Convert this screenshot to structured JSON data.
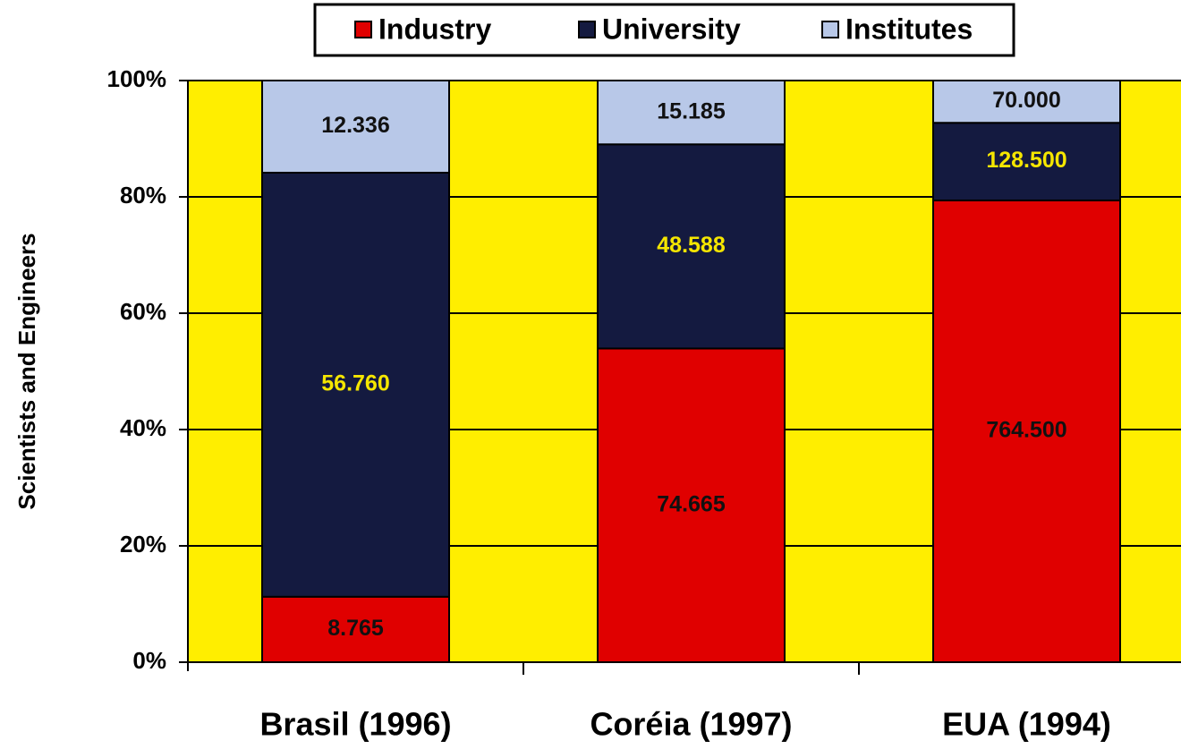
{
  "chart_data": {
    "type": "stacked_bar_percent",
    "y_label": "Scientists and Engineers",
    "categories": [
      "Brasil (1996)",
      "Coréia (1997)",
      "EUA (1994)"
    ],
    "series": [
      {
        "name": "Industry",
        "color": "#e00000",
        "label_color": "#111111",
        "values": [
          8765,
          74665,
          764500
        ],
        "value_labels": [
          "8.765",
          "74.665",
          "764.500"
        ]
      },
      {
        "name": "University",
        "color": "#141a40",
        "label_color": "#f5e600",
        "values": [
          56760,
          48588,
          128500
        ],
        "value_labels": [
          "56.760",
          "48.588",
          "128.500"
        ]
      },
      {
        "name": "Institutes",
        "color": "#b8c8e8",
        "label_color": "#111111",
        "values": [
          12336,
          15185,
          70000
        ],
        "value_labels": [
          "12.336",
          "15.185",
          "70.000"
        ]
      }
    ],
    "ylim": [
      0,
      100
    ],
    "yticks": [
      {
        "value": 0,
        "label": "0%"
      },
      {
        "value": 20,
        "label": "20%"
      },
      {
        "value": 40,
        "label": "40%"
      },
      {
        "value": 60,
        "label": "60%"
      },
      {
        "value": 80,
        "label": "80%"
      },
      {
        "value": 100,
        "label": "100%"
      }
    ],
    "grid": true,
    "background": "#ffee00",
    "legend": "top"
  }
}
